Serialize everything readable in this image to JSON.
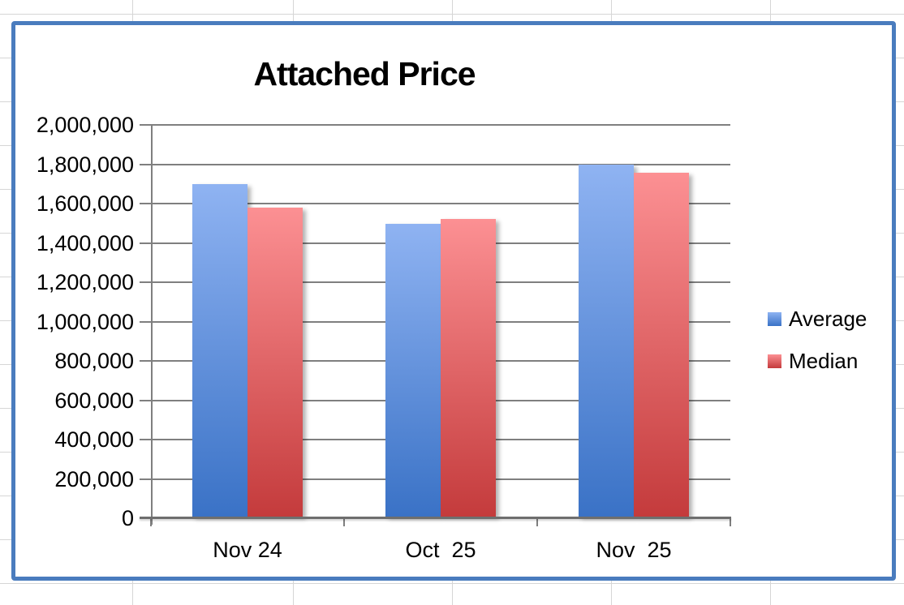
{
  "colors": {
    "frame_border": "#4a7cbe",
    "chart_gridline": "#7f7f7f",
    "chart_axis": "#6e6e6e",
    "spreadsheet_gridline": "#d6d6d6",
    "average_top": "#8fb3f2",
    "average_bottom": "#3a72c6",
    "median_top": "#fc9093",
    "median_bottom": "#c43b3c"
  },
  "chart_data": {
    "type": "bar",
    "title": "Attached Price",
    "categories": [
      "Nov 24",
      "Oct  25",
      "Nov  25"
    ],
    "series": [
      {
        "name": "Average",
        "color_top": "#8fb3f2",
        "color_bottom": "#3a72c6",
        "values": [
          1690000,
          1488000,
          1790000
        ]
      },
      {
        "name": "Median",
        "color_top": "#fc9093",
        "color_bottom": "#c43b3c",
        "values": [
          1571000,
          1513000,
          1748000
        ]
      }
    ],
    "xlabel": "",
    "ylabel": "",
    "ylim": [
      0,
      2000000
    ],
    "ytick_step": 200000,
    "ytick_labels": [
      "2,000,000",
      "1,800,000",
      "1,600,000",
      "1,400,000",
      "1,200,000",
      "1,000,000",
      "800,000",
      "600,000",
      "400,000",
      "200,000",
      "0"
    ],
    "grid": true,
    "legend_position": "right"
  }
}
